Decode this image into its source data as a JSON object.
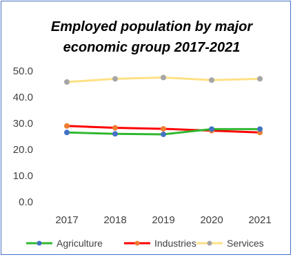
{
  "chart_data": {
    "type": "line",
    "title": "Employed population by major economic group 2017-2021",
    "title_line1": "Employed population by major",
    "title_line2": "economic group 2017-2021",
    "categories": [
      "2017",
      "2018",
      "2019",
      "2020",
      "2021"
    ],
    "ylim": [
      0,
      50
    ],
    "yticks": [
      "0.0",
      "10.0",
      "20.0",
      "30.0",
      "40.0",
      "50.0"
    ],
    "grid": false,
    "legend": "bottom",
    "series": [
      {
        "name": "Agriculture",
        "values": [
          26.5,
          26.0,
          25.8,
          27.8,
          27.8
        ],
        "line_color": "#2eb82e",
        "marker_color": "#4472c4"
      },
      {
        "name": "Industries",
        "values": [
          29.0,
          28.3,
          27.9,
          27.2,
          26.5
        ],
        "line_color": "#ff0000",
        "marker_color": "#ed7d31"
      },
      {
        "name": "Services",
        "values": [
          45.8,
          47.0,
          47.5,
          46.5,
          47.0
        ],
        "line_color": "#ffe083",
        "marker_color": "#a5a5a5"
      }
    ]
  }
}
